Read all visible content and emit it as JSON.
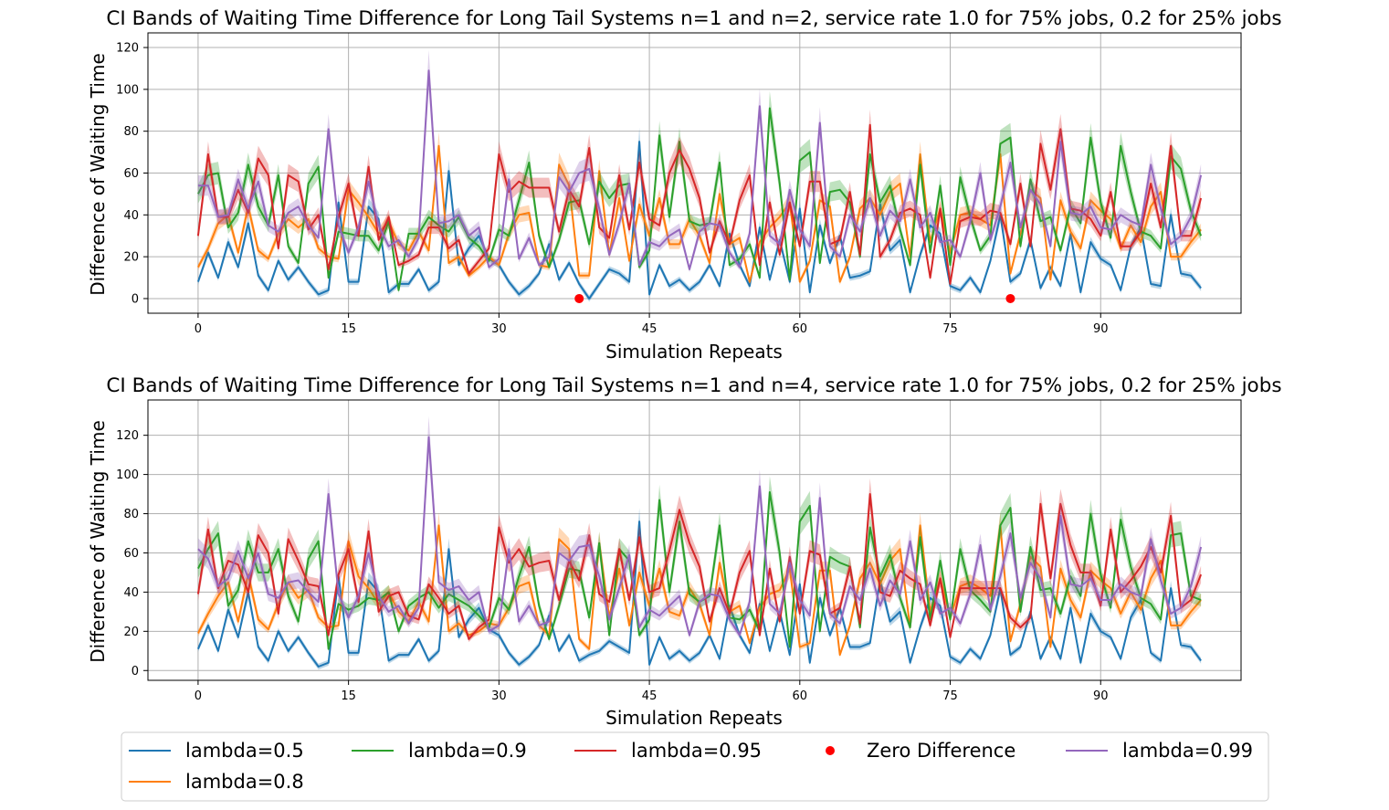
{
  "chart_data": [
    {
      "type": "line",
      "title": "CI Bands of Waiting Time Difference for Long Tail Systems n=1 and n=2, service rate 1.0 for 75% jobs, 0.2 for 25% jobs",
      "xlabel": "Simulation Repeats",
      "ylabel": "Difference of Waiting Time",
      "xlim": [
        -5,
        104
      ],
      "ylim": [
        -7,
        127
      ],
      "xticks": [
        0,
        15,
        30,
        45,
        60,
        75,
        90
      ],
      "yticks": [
        0,
        20,
        40,
        60,
        80,
        100,
        120
      ],
      "grid": true,
      "band_halfwidth_ratio": 0.09,
      "zero_points": [
        38,
        81
      ],
      "series": [
        {
          "name": "lambda=0.5",
          "color": "#1f77b4",
          "values": [
            8,
            22,
            10,
            27,
            15,
            36,
            11,
            4,
            18,
            9,
            15,
            8,
            2,
            4,
            46,
            8,
            8,
            44,
            38,
            3,
            7,
            7,
            14,
            4,
            8,
            61,
            16,
            24,
            30,
            19,
            16,
            8,
            2,
            6,
            12,
            26,
            9,
            17,
            7,
            0,
            7,
            14,
            12,
            8,
            75,
            2,
            16,
            6,
            9,
            4,
            8,
            16,
            6,
            31,
            16,
            6,
            34,
            9,
            28,
            8,
            43,
            3,
            35,
            17,
            30,
            10,
            11,
            13,
            45,
            23,
            28,
            3,
            21,
            35,
            31,
            6,
            4,
            10,
            3,
            18,
            40,
            8,
            12,
            28,
            5,
            15,
            6,
            31,
            3,
            27,
            19,
            16,
            4,
            25,
            34,
            7,
            6,
            40,
            12,
            11,
            5
          ]
        },
        {
          "name": "lambda=0.8",
          "color": "#ff7f0e",
          "values": [
            15,
            24,
            36,
            40,
            22,
            44,
            23,
            19,
            31,
            38,
            34,
            38,
            24,
            20,
            19,
            52,
            46,
            39,
            31,
            37,
            26,
            23,
            32,
            23,
            73,
            17,
            20,
            11,
            15,
            20,
            16,
            31,
            40,
            41,
            16,
            15,
            64,
            54,
            11,
            11,
            61,
            21,
            48,
            18,
            45,
            30,
            48,
            26,
            26,
            38,
            30,
            17,
            50,
            26,
            29,
            8,
            27,
            34,
            39,
            46,
            8,
            18,
            47,
            44,
            8,
            20,
            43,
            48,
            40,
            51,
            55,
            20,
            69,
            27,
            43,
            22,
            40,
            41,
            38,
            35,
            69,
            12,
            31,
            52,
            48,
            9,
            47,
            32,
            24,
            47,
            42,
            38,
            24,
            35,
            27,
            44,
            51,
            20,
            20,
            27,
            33
          ]
        },
        {
          "name": "lambda=0.9",
          "color": "#2ca02c",
          "values": [
            50,
            59,
            60,
            34,
            41,
            64,
            44,
            35,
            59,
            25,
            17,
            55,
            63,
            10,
            32,
            31,
            30,
            30,
            23,
            37,
            4,
            31,
            31,
            39,
            35,
            32,
            39,
            29,
            25,
            18,
            33,
            30,
            47,
            65,
            30,
            15,
            28,
            46,
            47,
            26,
            56,
            48,
            54,
            55,
            15,
            23,
            78,
            39,
            75,
            37,
            35,
            36,
            65,
            16,
            19,
            26,
            10,
            91,
            55,
            9,
            66,
            70,
            17,
            51,
            52,
            46,
            20,
            69,
            46,
            54,
            33,
            16,
            64,
            22,
            54,
            16,
            58,
            39,
            23,
            30,
            74,
            77,
            25,
            57,
            37,
            39,
            23,
            44,
            36,
            77,
            46,
            29,
            73,
            51,
            32,
            30,
            24,
            68,
            62,
            42,
            30
          ]
        },
        {
          "name": "lambda=0.95",
          "color": "#d62728",
          "values": [
            30,
            69,
            39,
            39,
            52,
            41,
            67,
            59,
            24,
            59,
            56,
            33,
            40,
            14,
            39,
            55,
            30,
            63,
            28,
            39,
            16,
            18,
            21,
            34,
            34,
            24,
            28,
            12,
            18,
            24,
            69,
            51,
            56,
            53,
            53,
            53,
            32,
            52,
            44,
            72,
            34,
            29,
            59,
            33,
            65,
            38,
            35,
            60,
            71,
            62,
            48,
            22,
            37,
            26,
            47,
            59,
            16,
            46,
            21,
            46,
            25,
            56,
            56,
            26,
            28,
            51,
            21,
            83,
            20,
            28,
            41,
            43,
            40,
            10,
            43,
            7,
            37,
            39,
            38,
            42,
            41,
            26,
            55,
            25,
            74,
            52,
            81,
            43,
            42,
            38,
            30,
            51,
            25,
            25,
            32,
            55,
            34,
            73,
            30,
            30,
            48
          ]
        },
        {
          "name": "lambda=0.99",
          "color": "#9467bd",
          "values": [
            54,
            54,
            39,
            40,
            57,
            43,
            56,
            35,
            32,
            41,
            44,
            35,
            29,
            81,
            35,
            22,
            34,
            56,
            35,
            25,
            28,
            20,
            29,
            109,
            36,
            37,
            40,
            30,
            34,
            15,
            19,
            57,
            19,
            29,
            16,
            20,
            58,
            51,
            60,
            62,
            43,
            21,
            36,
            55,
            16,
            27,
            25,
            30,
            33,
            14,
            32,
            36,
            35,
            22,
            15,
            31,
            92,
            30,
            26,
            52,
            33,
            25,
            84,
            25,
            20,
            40,
            32,
            48,
            30,
            42,
            37,
            57,
            34,
            41,
            27,
            28,
            20,
            37,
            60,
            28,
            44,
            65,
            34,
            52,
            45,
            25,
            75,
            41,
            40,
            44,
            34,
            33,
            40,
            37,
            35,
            64,
            43,
            26,
            30,
            39,
            59
          ]
        }
      ]
    },
    {
      "type": "line",
      "title": "CI Bands of Waiting Time Difference for Long Tail Systems n=1 and n=4, service rate 1.0 for 75% jobs, 0.2 for 25% jobs",
      "xlabel": "Simulation Repeats",
      "ylabel": "Difference of Waiting Time",
      "xlim": [
        -5,
        104
      ],
      "ylim": [
        -5,
        138
      ],
      "xticks": [
        0,
        15,
        30,
        45,
        60,
        75,
        90
      ],
      "yticks": [
        0,
        20,
        40,
        60,
        80,
        100,
        120
      ],
      "grid": true,
      "band_halfwidth_ratio": 0.09,
      "zero_points": [],
      "series": [
        {
          "name": "lambda=0.5",
          "color": "#1f77b4",
          "values": [
            11,
            23,
            10,
            31,
            17,
            40,
            12,
            5,
            20,
            10,
            17,
            9,
            2,
            4,
            48,
            9,
            9,
            46,
            40,
            5,
            8,
            8,
            16,
            5,
            10,
            62,
            17,
            26,
            32,
            21,
            18,
            9,
            3,
            7,
            13,
            28,
            10,
            18,
            5,
            8,
            10,
            15,
            12,
            9,
            76,
            3,
            17,
            6,
            10,
            5,
            9,
            18,
            6,
            33,
            18,
            9,
            34,
            10,
            30,
            8,
            44,
            4,
            37,
            18,
            32,
            12,
            12,
            14,
            46,
            25,
            30,
            4,
            22,
            37,
            33,
            7,
            4,
            11,
            6,
            18,
            42,
            8,
            12,
            30,
            6,
            17,
            6,
            32,
            4,
            29,
            20,
            17,
            6,
            27,
            36,
            9,
            5,
            42,
            13,
            12,
            5
          ]
        },
        {
          "name": "lambda=0.8",
          "color": "#ff7f0e",
          "values": [
            19,
            29,
            38,
            45,
            25,
            49,
            26,
            21,
            34,
            45,
            37,
            41,
            27,
            22,
            23,
            66,
            48,
            42,
            34,
            40,
            30,
            25,
            35,
            25,
            74,
            20,
            24,
            18,
            20,
            24,
            23,
            32,
            43,
            45,
            23,
            18,
            67,
            62,
            16,
            11,
            65,
            27,
            52,
            23,
            50,
            33,
            52,
            30,
            28,
            42,
            34,
            18,
            55,
            30,
            33,
            14,
            32,
            39,
            41,
            52,
            12,
            14,
            51,
            51,
            8,
            23,
            47,
            55,
            44,
            56,
            62,
            22,
            74,
            30,
            47,
            27,
            43,
            45,
            42,
            38,
            74,
            15,
            34,
            58,
            53,
            12,
            52,
            36,
            27,
            51,
            46,
            42,
            29,
            40,
            31,
            47,
            56,
            23,
            23,
            30,
            36
          ]
        },
        {
          "name": "lambda=0.9",
          "color": "#2ca02c",
          "values": [
            52,
            62,
            70,
            33,
            41,
            66,
            50,
            50,
            62,
            38,
            25,
            57,
            66,
            11,
            34,
            31,
            33,
            37,
            36,
            40,
            20,
            33,
            37,
            40,
            32,
            39,
            36,
            33,
            28,
            22,
            37,
            31,
            48,
            63,
            33,
            16,
            33,
            52,
            51,
            27,
            65,
            18,
            62,
            56,
            18,
            26,
            87,
            40,
            76,
            39,
            35,
            38,
            74,
            27,
            26,
            31,
            20,
            91,
            60,
            12,
            76,
            84,
            20,
            58,
            55,
            53,
            22,
            73,
            48,
            59,
            37,
            22,
            68,
            26,
            56,
            26,
            62,
            41,
            36,
            30,
            74,
            83,
            30,
            63,
            41,
            42,
            29,
            48,
            38,
            80,
            49,
            32,
            77,
            53,
            37,
            34,
            26,
            69,
            70,
            38,
            36
          ]
        },
        {
          "name": "lambda=0.95",
          "color": "#d62728",
          "values": [
            39,
            72,
            42,
            56,
            54,
            40,
            69,
            60,
            29,
            67,
            56,
            44,
            43,
            18,
            49,
            62,
            35,
            71,
            30,
            38,
            40,
            28,
            26,
            44,
            37,
            29,
            33,
            16,
            22,
            26,
            73,
            55,
            62,
            53,
            55,
            56,
            36,
            56,
            46,
            69,
            39,
            35,
            62,
            36,
            68,
            40,
            42,
            61,
            82,
            65,
            53,
            25,
            42,
            29,
            50,
            61,
            18,
            52,
            25,
            58,
            29,
            61,
            59,
            29,
            32,
            53,
            24,
            90,
            40,
            38,
            51,
            47,
            44,
            23,
            47,
            17,
            42,
            42,
            42,
            42,
            42,
            27,
            22,
            27,
            85,
            47,
            85,
            64,
            50,
            50,
            33,
            72,
            40,
            46,
            53,
            63,
            50,
            79,
            32,
            36,
            49
          ]
        },
        {
          "name": "lambda=0.99",
          "color": "#9467bd",
          "values": [
            62,
            57,
            43,
            47,
            61,
            47,
            60,
            39,
            37,
            45,
            46,
            40,
            35,
            90,
            39,
            27,
            38,
            60,
            38,
            30,
            33,
            24,
            32,
            119,
            45,
            41,
            43,
            36,
            40,
            20,
            23,
            62,
            25,
            33,
            23,
            25,
            60,
            56,
            63,
            64,
            48,
            26,
            42,
            59,
            22,
            31,
            28,
            33,
            38,
            18,
            35,
            39,
            38,
            26,
            18,
            35,
            94,
            34,
            29,
            55,
            36,
            28,
            88,
            29,
            24,
            43,
            36,
            52,
            33,
            46,
            39,
            66,
            36,
            45,
            29,
            32,
            24,
            39,
            64,
            31,
            48,
            70,
            37,
            55,
            47,
            27,
            79,
            44,
            43,
            47,
            36,
            36,
            44,
            40,
            38,
            67,
            46,
            29,
            32,
            43,
            63
          ]
        }
      ]
    }
  ],
  "legend": {
    "placement": "bottom-center",
    "items": [
      {
        "label": "lambda=0.5",
        "color": "#1f77b4",
        "kind": "line"
      },
      {
        "label": "lambda=0.8",
        "color": "#ff7f0e",
        "kind": "line"
      },
      {
        "label": "lambda=0.9",
        "color": "#2ca02c",
        "kind": "line"
      },
      {
        "label": "lambda=0.95",
        "color": "#d62728",
        "kind": "line"
      },
      {
        "label": "Zero Difference",
        "color": "#ff0000",
        "kind": "marker"
      },
      {
        "label": "lambda=0.99",
        "color": "#9467bd",
        "kind": "line"
      }
    ]
  }
}
